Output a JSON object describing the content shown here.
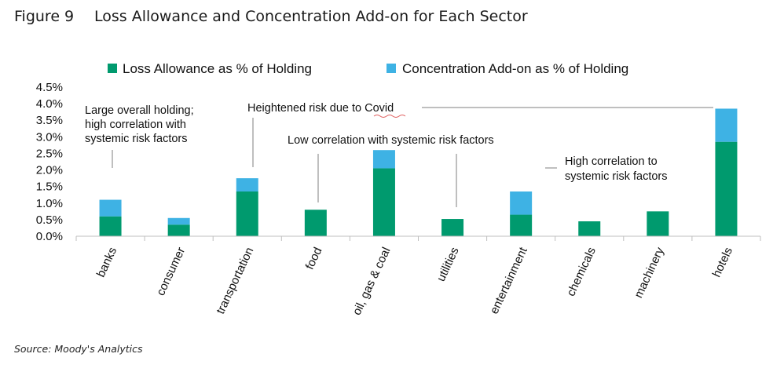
{
  "figure": {
    "number": "Figure 9",
    "title": "Loss Allowance and Concentration Add-on for Each Sector",
    "source": "Source: Moody's Analytics"
  },
  "colors": {
    "loss": "#009a6e",
    "concentration": "#3eb2e4",
    "axis": "#bfbfbf",
    "leader": "#7f7f7f",
    "covid_underline": "#e06060"
  },
  "chart_data": {
    "type": "bar",
    "stacked": true,
    "categories": [
      "banks",
      "consumer",
      "transportation",
      "food",
      "oil, gas & coal",
      "utilities",
      "entertainment",
      "chemicals",
      "machinery",
      "hotels"
    ],
    "series": [
      {
        "name": "Loss Allowance as % of Holding",
        "values": [
          0.6,
          0.35,
          1.35,
          0.8,
          2.05,
          0.52,
          0.65,
          0.45,
          0.75,
          2.85
        ]
      },
      {
        "name": "Concentration Add-on as % of Holding",
        "values": [
          0.5,
          0.2,
          0.4,
          0.0,
          0.55,
          0.0,
          0.7,
          0.0,
          0.0,
          1.0
        ]
      }
    ],
    "y_ticks": [
      "0.0%",
      "0.5%",
      "1.0%",
      "1.5%",
      "2.0%",
      "2.5%",
      "3.0%",
      "3.5%",
      "4.0%",
      "4.5%"
    ],
    "ylim": [
      0,
      4.5
    ],
    "legend_position": "top",
    "grid": false,
    "annotations": [
      {
        "lines": [
          "Large overall holding;",
          "high correlation with",
          "systemic risk factors"
        ],
        "target": "banks"
      },
      {
        "lines": [
          "Heightened risk due to Covid"
        ],
        "target": "transportation"
      },
      {
        "lines": [
          "Low correlation with systemic risk factors"
        ],
        "target": "food"
      },
      {
        "lines": [
          "High correlation to",
          "systemic risk factors"
        ],
        "target": "entertainment"
      }
    ]
  }
}
